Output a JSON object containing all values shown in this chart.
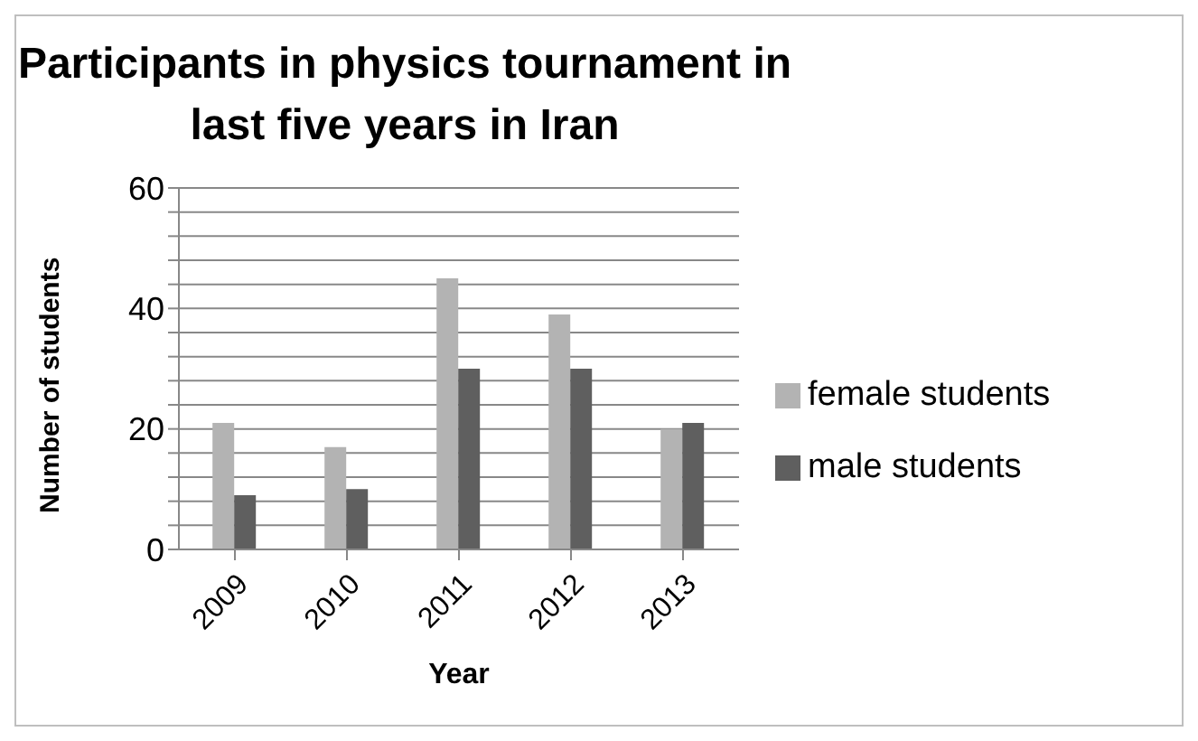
{
  "chart_data": {
    "type": "bar",
    "title": "Participants in physics tournament in last five years in Iran",
    "xlabel": "Year",
    "ylabel": "Number of students",
    "categories": [
      "2009",
      "2010",
      "2011",
      "2012",
      "2013"
    ],
    "series": [
      {
        "name": "female students",
        "color": "#b3b3b3",
        "values": [
          21,
          17,
          45,
          39,
          20
        ]
      },
      {
        "name": "male students",
        "color": "#5f5f5f",
        "values": [
          9,
          10,
          30,
          30,
          21
        ]
      }
    ],
    "ylim": [
      0,
      60
    ],
    "yticks": [
      0,
      {
        "value": 4,
        "label": null
      },
      {
        "value": 8,
        "label": null
      },
      {
        "value": 12,
        "label": null
      },
      {
        "value": 16,
        "label": null
      },
      20,
      {
        "value": 24,
        "label": null
      },
      {
        "value": 28,
        "label": null
      },
      {
        "value": 32,
        "label": null
      },
      {
        "value": 36,
        "label": null
      },
      40,
      {
        "value": 44,
        "label": null
      },
      {
        "value": 48,
        "label": null
      },
      {
        "value": 52,
        "label": null
      },
      {
        "value": 56,
        "label": null
      },
      60
    ],
    "grid": "y",
    "legend": "right"
  }
}
